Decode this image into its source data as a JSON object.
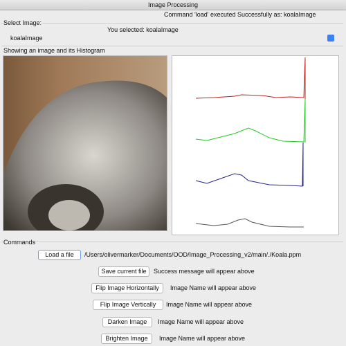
{
  "window": {
    "title": "Image Processing"
  },
  "status": "Command 'load' executed Successfully as: koalaImage",
  "select": {
    "label": "Select Image:",
    "selected_text": "You selected: koalaImage",
    "dropdown": "koalaImage"
  },
  "display": {
    "label": "Showing an image and its Histogram"
  },
  "commands": {
    "label": "Commands",
    "rows": [
      {
        "button": "Load a file",
        "text": "/Users/olivermarker/Documents/OOD/Image_Processing_v2/main/./Koala.ppm"
      },
      {
        "button": "Save current file",
        "text": "Success message will appear above"
      },
      {
        "button": "Flip Image Horizontally",
        "text": "Image Name will appear above"
      },
      {
        "button": "Flip Image Vertically",
        "text": "Image Name will appear above"
      },
      {
        "button": "Darken Image",
        "text": "Image Name will appear above"
      },
      {
        "button": "Brighten Image",
        "text": "Image Name will appear above"
      }
    ]
  }
}
